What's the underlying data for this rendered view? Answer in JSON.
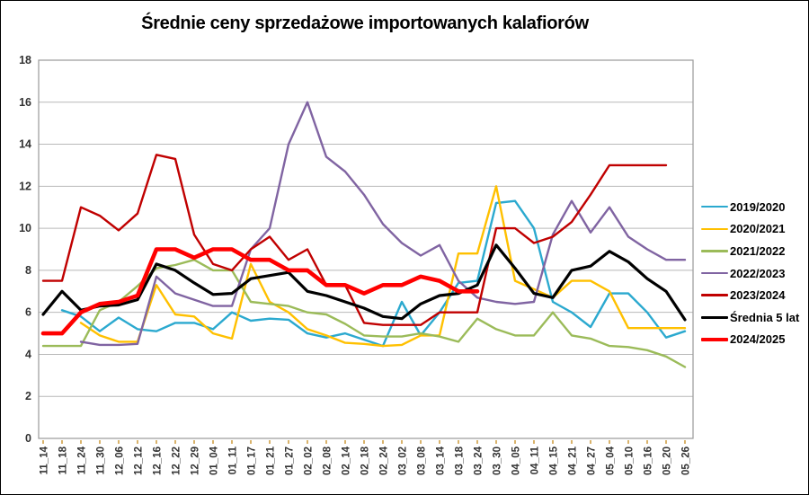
{
  "chart_data": {
    "type": "line",
    "title": "Średnie ceny sprzedażowe importowanych kalafiorów",
    "xlabel": "",
    "ylabel": "",
    "ylim": [
      0,
      18
    ],
    "ytick_step": 2,
    "grid": true,
    "legend_position": "right",
    "categories": [
      "11_14",
      "11_18",
      "11_24",
      "11_30",
      "12_06",
      "12_12",
      "12_16",
      "12_22",
      "12_29",
      "01_04",
      "01_11",
      "01_17",
      "01_21",
      "01_27",
      "02_02",
      "02_08",
      "02_14",
      "02_18",
      "02_24",
      "03_02",
      "03_08",
      "03_14",
      "03_18",
      "03_24",
      "03_30",
      "04_05",
      "04_11",
      "04_15",
      "04_21",
      "04_27",
      "05_04",
      "05_10",
      "05_16",
      "05_20",
      "05_26"
    ],
    "series": [
      {
        "name": "2019/2020",
        "color": "#2BA9CF",
        "width": 2.4,
        "values": [
          null,
          6.1,
          5.8,
          5.1,
          5.75,
          5.2,
          5.1,
          5.5,
          5.5,
          5.2,
          6.0,
          5.6,
          5.7,
          5.65,
          5.0,
          4.8,
          5.0,
          4.7,
          4.4,
          6.5,
          4.9,
          6.0,
          7.4,
          7.5,
          11.2,
          11.3,
          10.0,
          6.5,
          6.0,
          5.3,
          6.9,
          6.9,
          6.0,
          4.8,
          5.1
        ]
      },
      {
        "name": "2020/2021",
        "color": "#FFC000",
        "width": 2.4,
        "values": [
          null,
          null,
          5.5,
          4.9,
          4.6,
          4.6,
          7.3,
          5.9,
          5.8,
          5.0,
          4.75,
          8.3,
          6.5,
          6.0,
          5.2,
          4.9,
          4.55,
          4.5,
          4.4,
          4.45,
          4.9,
          4.9,
          8.8,
          8.8,
          12.0,
          7.5,
          7.1,
          6.7,
          7.5,
          7.5,
          7.0,
          5.25,
          5.25,
          5.25,
          5.25
        ]
      },
      {
        "name": "2021/2022",
        "color": "#9BBB59",
        "width": 2.4,
        "values": [
          4.4,
          4.4,
          4.4,
          6.1,
          6.5,
          7.25,
          8.1,
          8.25,
          8.5,
          8.0,
          8.0,
          6.5,
          6.4,
          6.3,
          6.0,
          5.9,
          5.45,
          4.9,
          4.85,
          4.85,
          5.0,
          4.85,
          4.6,
          5.7,
          5.2,
          4.9,
          4.9,
          6.0,
          4.9,
          4.75,
          4.4,
          4.35,
          4.2,
          3.9,
          3.4
        ]
      },
      {
        "name": "2022/2023",
        "color": "#8064A2",
        "width": 2.4,
        "values": [
          null,
          null,
          4.6,
          4.45,
          4.45,
          4.5,
          7.7,
          6.9,
          6.6,
          6.3,
          6.3,
          9.0,
          10.0,
          14.0,
          16.0,
          13.4,
          12.7,
          11.6,
          10.2,
          9.3,
          8.7,
          9.2,
          7.5,
          6.7,
          6.5,
          6.4,
          6.5,
          9.7,
          11.3,
          9.8,
          11.0,
          9.6,
          9.0,
          8.5,
          8.5
        ]
      },
      {
        "name": "2023/2024",
        "color": "#C00000",
        "width": 2.4,
        "values": [
          7.5,
          7.5,
          11.0,
          10.6,
          9.9,
          10.7,
          13.5,
          13.3,
          9.7,
          8.3,
          8.0,
          9.0,
          9.6,
          8.5,
          9.0,
          7.3,
          7.3,
          5.5,
          5.4,
          5.4,
          5.4,
          6.0,
          6.0,
          6.0,
          10.0,
          10.0,
          9.3,
          9.6,
          10.3,
          11.6,
          13.0,
          13.0,
          13.0,
          13.0,
          null
        ]
      },
      {
        "name": "Średnia 5 lat",
        "color": "#000000",
        "width": 3.2,
        "values": [
          5.9,
          7.0,
          6.1,
          6.3,
          6.35,
          6.6,
          8.3,
          8.0,
          7.4,
          6.85,
          6.9,
          7.6,
          7.75,
          7.9,
          7.0,
          6.8,
          6.5,
          6.2,
          5.8,
          5.7,
          6.4,
          6.8,
          6.9,
          7.3,
          9.2,
          8.1,
          6.9,
          6.7,
          8.0,
          8.2,
          8.9,
          8.4,
          7.6,
          7.0,
          5.65
        ]
      },
      {
        "name": "2024/2025",
        "color": "#FF0000",
        "width": 4.6,
        "values": [
          5.0,
          5.0,
          6.0,
          6.4,
          6.5,
          6.8,
          9.0,
          9.0,
          8.6,
          9.0,
          9.0,
          8.5,
          8.5,
          8.0,
          8.0,
          7.3,
          7.3,
          6.9,
          7.3,
          7.3,
          7.7,
          7.5,
          7.0,
          7.0,
          null,
          null,
          null,
          null,
          null,
          null,
          null,
          null,
          null,
          null,
          null
        ]
      }
    ],
    "colors": {
      "gridline": "#b9b9b9",
      "plot_border": "#9a9a9a",
      "axis_text": "#333333",
      "tick_mark": "#d9b36c"
    }
  }
}
